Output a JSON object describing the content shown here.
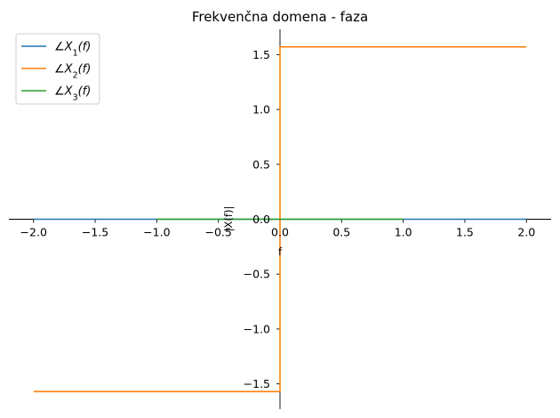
{
  "chart_data": {
    "type": "line",
    "title": "Frekvenčna domena - faza",
    "xlabel": "f",
    "ylabel": "|X(f)|",
    "xlim": [
      -2.2,
      2.2
    ],
    "ylim": [
      -1.73,
      1.73
    ],
    "xticks": [
      -2.0,
      -1.5,
      -1.0,
      -0.5,
      0.0,
      0.5,
      1.0,
      1.5,
      2.0
    ],
    "xtick_labels": [
      "−2.0",
      "−1.5",
      "−1.0",
      "−0.5",
      "0.0",
      "0.5",
      "1.0",
      "1.5",
      "2.0"
    ],
    "yticks": [
      -1.5,
      -1.0,
      -0.5,
      0.0,
      0.5,
      1.0,
      1.5
    ],
    "ytick_labels": [
      "−1.5",
      "−1.0",
      "−0.5",
      "0.0",
      "0.5",
      "1.0",
      "1.5"
    ],
    "grid": false,
    "legend_position": "top-left",
    "series": [
      {
        "name": "∠X1(f)",
        "legend_main": "∠X",
        "legend_sub": "1",
        "legend_tail": "(f)",
        "color": "#1f77b4",
        "x": [
          -2.0,
          2.0
        ],
        "y": [
          0.0,
          0.0
        ]
      },
      {
        "name": "∠X2(f)",
        "legend_main": "∠X",
        "legend_sub": "2",
        "legend_tail": "(f)",
        "color": "#ff7f0e",
        "x": [
          -2.0,
          0.0,
          0.0,
          2.0
        ],
        "y": [
          -1.5708,
          -1.5708,
          1.5708,
          1.5708
        ]
      },
      {
        "name": "∠X3(f)",
        "legend_main": "∠X",
        "legend_sub": "3",
        "legend_tail": "(f)",
        "color": "#2ca02c",
        "x": [
          -1.0,
          1.0
        ],
        "y": [
          0.0,
          0.0
        ]
      }
    ]
  }
}
